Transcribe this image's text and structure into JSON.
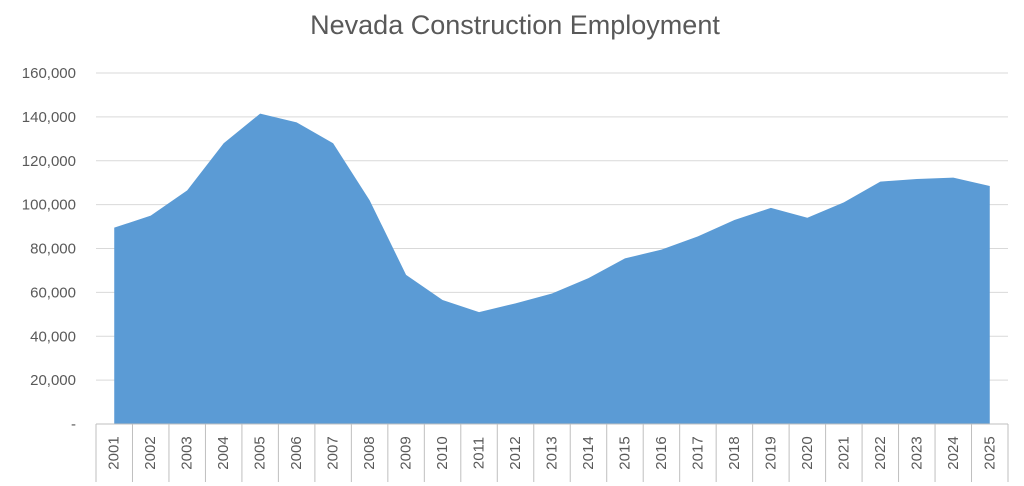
{
  "chart_data": {
    "type": "area",
    "title": "Nevada Construction Employment",
    "xlabel": "",
    "ylabel": "",
    "ylim": [
      0,
      160000
    ],
    "y_ticks": [
      {
        "value": 0,
        "label": "-"
      },
      {
        "value": 20000,
        "label": "20,000"
      },
      {
        "value": 40000,
        "label": "40,000"
      },
      {
        "value": 60000,
        "label": "60,000"
      },
      {
        "value": 80000,
        "label": "80,000"
      },
      {
        "value": 100000,
        "label": "100,000"
      },
      {
        "value": 120000,
        "label": "120,000"
      },
      {
        "value": 140000,
        "label": "140,000"
      },
      {
        "value": 160000,
        "label": "160,000"
      }
    ],
    "grid": true,
    "legend": "none",
    "color": "#5b9bd5",
    "categories": [
      "2001",
      "2002",
      "2003",
      "2004",
      "2005",
      "2006",
      "2007",
      "2008",
      "2009",
      "2010",
      "2011",
      "2012",
      "2013",
      "2014",
      "2015",
      "2016",
      "2017",
      "2018",
      "2019",
      "2020",
      "2021",
      "2022",
      "2023",
      "2024",
      "2025"
    ],
    "values": [
      89500,
      95000,
      106500,
      128000,
      141500,
      137500,
      128000,
      102000,
      68000,
      56500,
      51000,
      55000,
      59500,
      66500,
      75500,
      79500,
      85500,
      93000,
      98500,
      94000,
      101000,
      110500,
      111700,
      112300,
      108500
    ]
  }
}
